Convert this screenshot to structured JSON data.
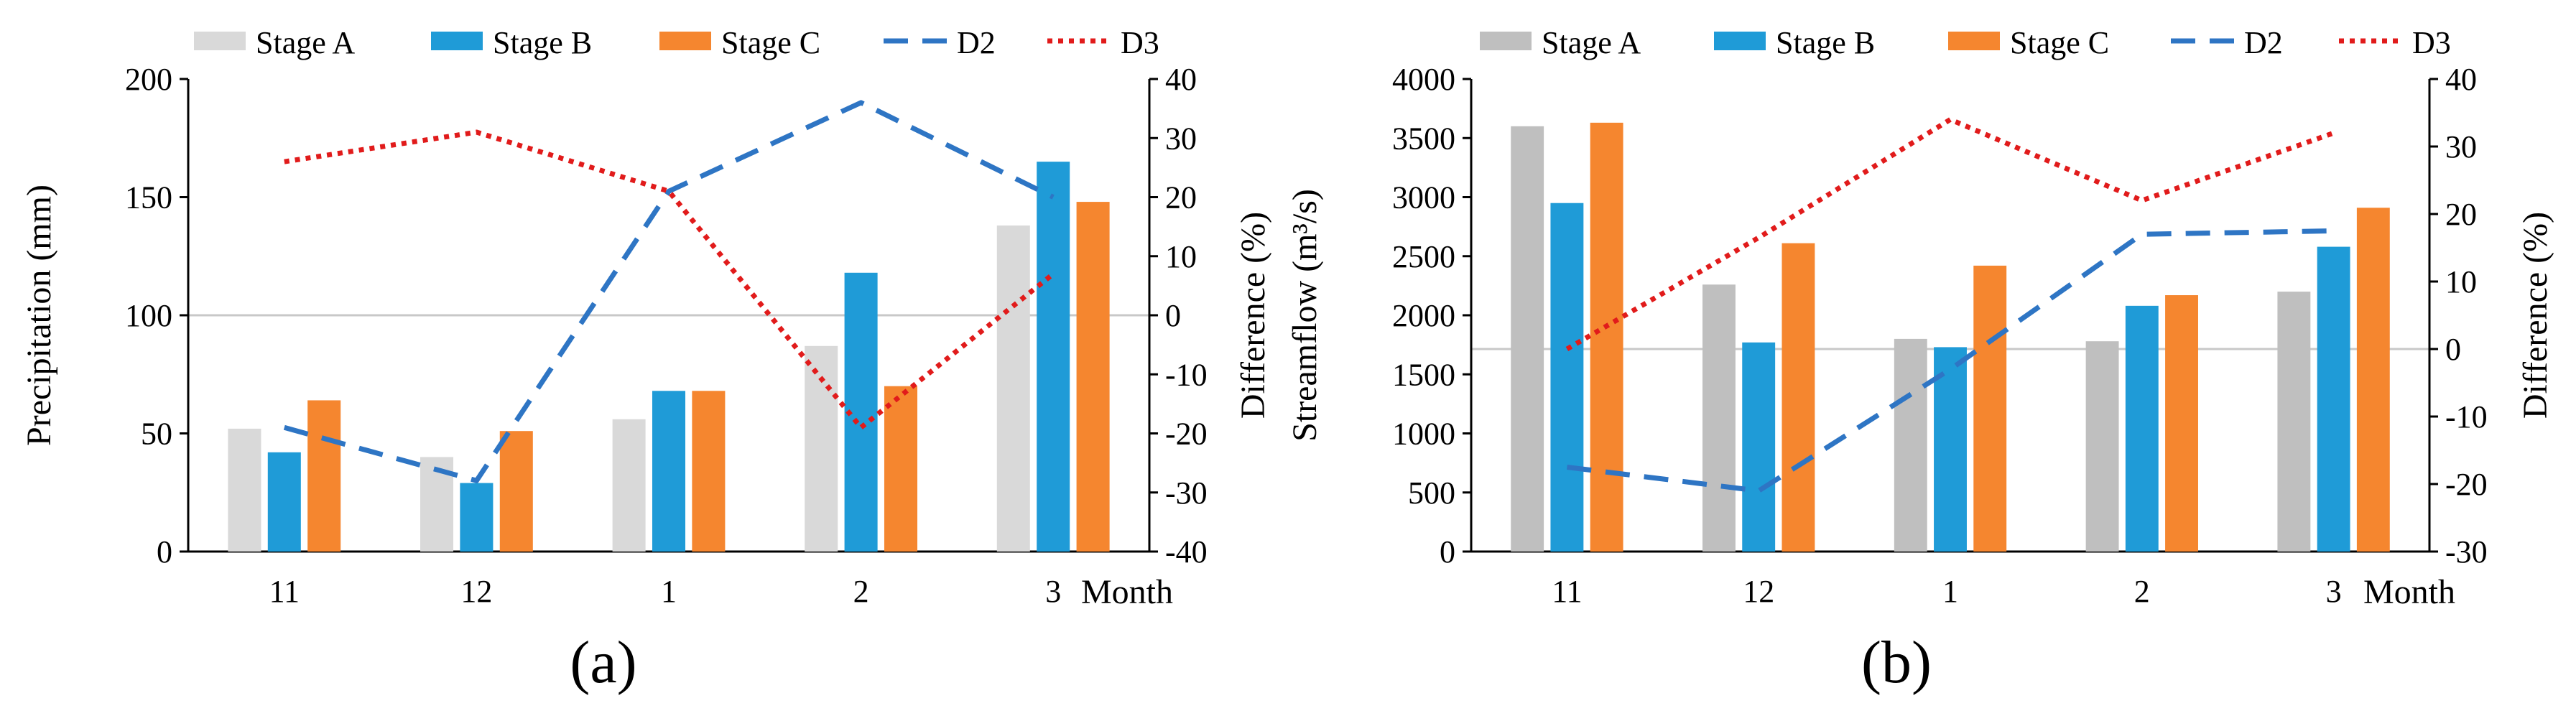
{
  "colors": {
    "stage_a_a": "#d9d9d9",
    "stage_a_b": "#bfbfbf",
    "stage_b": "#1f9bd7",
    "stage_c": "#f5862f",
    "d2": "#2e75c4",
    "d3": "#e11b1b"
  },
  "chart_data": [
    {
      "type": "bar",
      "panel_label": "(a)",
      "categories": [
        "11",
        "12",
        "1",
        "2",
        "3"
      ],
      "xlabel": "Month",
      "ylabel": "Precipitation (mm)",
      "ylabel_right": "Difference (%)",
      "ylim": [
        0,
        200
      ],
      "yticks": [
        "0",
        "50",
        "100",
        "150",
        "200"
      ],
      "ylim_right": [
        -40,
        40
      ],
      "yticks_right": [
        "-40",
        "-30",
        "-20",
        "-10",
        "0",
        "10",
        "20",
        "30",
        "40"
      ],
      "zero_line_right": 0,
      "legend": [
        "Stage A",
        "Stage B",
        "Stage C",
        "D2",
        "D3"
      ],
      "series": [
        {
          "name": "Stage A",
          "type": "bar",
          "axis": "left",
          "values": [
            52,
            40,
            56,
            87,
            138
          ]
        },
        {
          "name": "Stage B",
          "type": "bar",
          "axis": "left",
          "values": [
            42,
            29,
            68,
            118,
            165
          ]
        },
        {
          "name": "Stage C",
          "type": "bar",
          "axis": "left",
          "values": [
            64,
            51,
            68,
            70,
            148
          ]
        },
        {
          "name": "D2",
          "type": "line",
          "style": "dashed",
          "axis": "right",
          "values": [
            -19,
            -28,
            21,
            36,
            20
          ]
        },
        {
          "name": "D3",
          "type": "line",
          "style": "dotted",
          "axis": "right",
          "values": [
            26,
            31,
            21,
            -19,
            7
          ]
        }
      ]
    },
    {
      "type": "bar",
      "panel_label": "(b)",
      "categories": [
        "11",
        "12",
        "1",
        "2",
        "3"
      ],
      "xlabel": "Month",
      "ylabel": "Streamflow (m³/s)",
      "ylabel_right": "Difference (%)",
      "ylim": [
        0,
        4000
      ],
      "yticks": [
        "0",
        "500",
        "1000",
        "1500",
        "2000",
        "2500",
        "3000",
        "3500",
        "4000"
      ],
      "ylim_right": [
        -30,
        40
      ],
      "yticks_right": [
        "-30",
        "-20",
        "-10",
        "0",
        "10",
        "20",
        "30",
        "40"
      ],
      "zero_line_right": 0,
      "legend": [
        "Stage A",
        "Stage B",
        "Stage C",
        "D2",
        "D3"
      ],
      "series": [
        {
          "name": "Stage A",
          "type": "bar",
          "axis": "left",
          "values": [
            3600,
            2260,
            1800,
            1780,
            2200
          ]
        },
        {
          "name": "Stage B",
          "type": "bar",
          "axis": "left",
          "values": [
            2950,
            1770,
            1730,
            2080,
            2580
          ]
        },
        {
          "name": "Stage C",
          "type": "bar",
          "axis": "left",
          "values": [
            3630,
            2610,
            2420,
            2170,
            2910
          ]
        },
        {
          "name": "D2",
          "type": "line",
          "style": "dashed",
          "axis": "right",
          "values": [
            -17.5,
            -21,
            -3,
            17,
            17.5
          ]
        },
        {
          "name": "D3",
          "type": "line",
          "style": "dotted",
          "axis": "right",
          "values": [
            0,
            16.5,
            34,
            22,
            32
          ]
        }
      ]
    }
  ]
}
